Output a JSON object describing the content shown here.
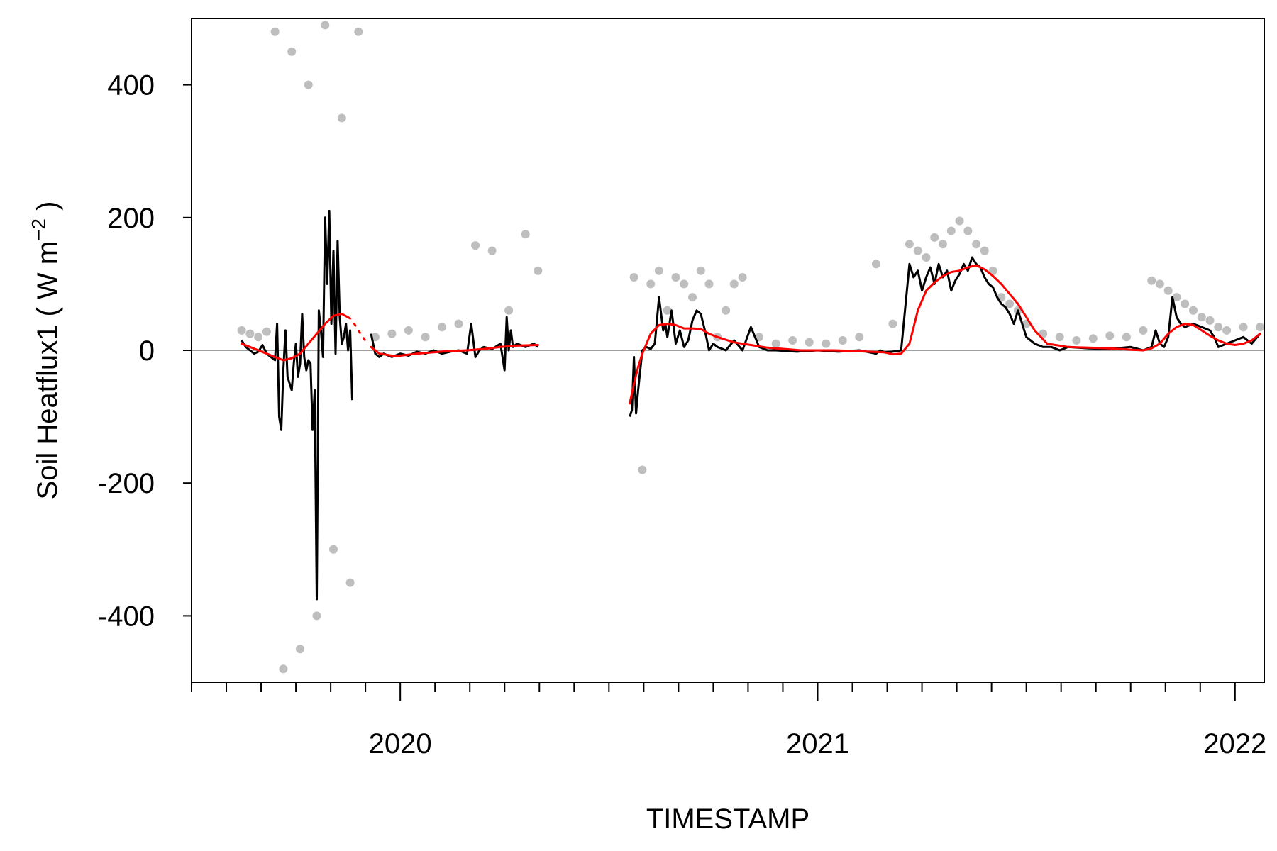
{
  "chart_data": {
    "type": "line",
    "title": "",
    "xlabel": "TIMESTAMP",
    "ylabel": {
      "main": "Soil Heatflux1 ( W m",
      "superscript": "−2",
      "close": " )"
    },
    "ylim": [
      -500,
      500
    ],
    "xlim": [
      2019.5,
      2022.07
    ],
    "y_ticks": [
      {
        "value": 400,
        "label": "400"
      },
      {
        "value": 200,
        "label": "200"
      },
      {
        "value": 0,
        "label": "0"
      },
      {
        "value": -200,
        "label": "-200"
      },
      {
        "value": -400,
        "label": "-400"
      }
    ],
    "x_ticks": [
      {
        "value": 2020,
        "label": "2020"
      },
      {
        "value": 2021,
        "label": "2021"
      },
      {
        "value": 2022,
        "label": "2022"
      }
    ],
    "x_minor_step_months": 1,
    "zero_line": true,
    "colors": {
      "raw": "#bebebe",
      "filtered": "#000000",
      "smoothed": "#ff0000",
      "zero_line": "#a0a0a0"
    },
    "series": [
      {
        "kind": "raw-points",
        "x": [
          2019.62,
          2019.64,
          2019.66,
          2019.68,
          2019.7,
          2019.72,
          2019.74,
          2019.76,
          2019.78,
          2019.8,
          2019.82,
          2019.84,
          2019.86,
          2019.88,
          2019.9,
          2019.94,
          2019.98,
          2020.02,
          2020.06,
          2020.1,
          2020.14,
          2020.18,
          2020.22,
          2020.26,
          2020.3,
          2020.33,
          2020.56,
          2020.58,
          2020.6,
          2020.62,
          2020.64,
          2020.66,
          2020.68,
          2020.7,
          2020.72,
          2020.74,
          2020.76,
          2020.78,
          2020.8,
          2020.82,
          2020.86,
          2020.9,
          2020.94,
          2020.98,
          2021.02,
          2021.06,
          2021.1,
          2021.14,
          2021.18,
          2021.22,
          2021.24,
          2021.26,
          2021.28,
          2021.3,
          2021.32,
          2021.34,
          2021.36,
          2021.38,
          2021.4,
          2021.42,
          2021.44,
          2021.46,
          2021.48,
          2021.5,
          2021.54,
          2021.58,
          2021.62,
          2021.66,
          2021.7,
          2021.74,
          2021.78,
          2021.8,
          2021.82,
          2021.84,
          2021.86,
          2021.88,
          2021.9,
          2021.92,
          2021.94,
          2021.96,
          2021.98,
          2022.02,
          2022.06
        ],
        "y": [
          30,
          25,
          20,
          28,
          480,
          -480,
          450,
          -450,
          400,
          -400,
          490,
          -300,
          350,
          -350,
          480,
          20,
          25,
          30,
          20,
          35,
          40,
          158,
          150,
          60,
          175,
          120,
          110,
          -180,
          100,
          120,
          60,
          110,
          100,
          80,
          120,
          100,
          20,
          60,
          100,
          110,
          20,
          10,
          15,
          12,
          10,
          15,
          20,
          130,
          40,
          160,
          150,
          140,
          170,
          160,
          180,
          195,
          180,
          160,
          150,
          120,
          80,
          70,
          60,
          40,
          25,
          20,
          15,
          18,
          22,
          20,
          30,
          105,
          100,
          90,
          80,
          70,
          60,
          50,
          45,
          35,
          30,
          35,
          35
        ]
      },
      {
        "kind": "filtered-line",
        "segments": [
          {
            "x": [
              2019.62,
              2019.63,
              2019.64,
              2019.65,
              2019.66,
              2019.67,
              2019.68,
              2019.69,
              2019.7,
              2019.705,
              2019.71,
              2019.715,
              2019.72,
              2019.725,
              2019.73,
              2019.74,
              2019.745,
              2019.75,
              2019.755,
              2019.76,
              2019.765,
              2019.77,
              2019.775,
              2019.78,
              2019.785,
              2019.79,
              2019.795,
              2019.8,
              2019.805,
              2019.81,
              2019.815,
              2019.82,
              2019.825,
              2019.83,
              2019.835,
              2019.84,
              2019.845,
              2019.85,
              2019.855,
              2019.86,
              2019.865,
              2019.87,
              2019.875,
              2019.88,
              2019.885
            ],
            "y": [
              15,
              5,
              0,
              -5,
              -2,
              8,
              -5,
              -10,
              -15,
              40,
              -100,
              -120,
              -30,
              30,
              -40,
              -60,
              -20,
              10,
              -40,
              -20,
              55,
              -10,
              -30,
              -15,
              -20,
              -120,
              -60,
              -375,
              60,
              30,
              -10,
              200,
              100,
              210,
              40,
              150,
              -5,
              165,
              50,
              10,
              20,
              40,
              0,
              30,
              -75
            ]
          },
          {
            "x": [
              2019.93,
              2019.94,
              2019.95,
              2019.96,
              2019.98,
              2020.0,
              2020.02,
              2020.04,
              2020.06,
              2020.08,
              2020.1,
              2020.12,
              2020.14,
              2020.16,
              2020.17,
              2020.18,
              2020.19,
              2020.2,
              2020.22,
              2020.24,
              2020.25,
              2020.255,
              2020.26,
              2020.265,
              2020.27,
              2020.28,
              2020.3,
              2020.32,
              2020.33
            ],
            "y": [
              25,
              -5,
              -10,
              -5,
              -10,
              -5,
              -8,
              -2,
              -5,
              0,
              -5,
              -2,
              0,
              -5,
              40,
              -10,
              0,
              5,
              2,
              10,
              -30,
              50,
              0,
              30,
              5,
              10,
              5,
              10,
              5
            ]
          },
          {
            "x": [
              2020.55,
              2020.555,
              2020.56,
              2020.565,
              2020.57,
              2020.58,
              2020.59,
              2020.6,
              2020.61,
              2020.62,
              2020.63,
              2020.635,
              2020.64,
              2020.65,
              2020.66,
              2020.67,
              2020.68,
              2020.69,
              2020.7,
              2020.71,
              2020.72,
              2020.73,
              2020.74,
              2020.75,
              2020.76,
              2020.78,
              2020.8,
              2020.82,
              2020.84,
              2020.86,
              2020.88,
              2020.9,
              2020.95,
              2021.0,
              2021.05,
              2021.1,
              2021.14,
              2021.15,
              2021.16,
              2021.18,
              2021.2,
              2021.22,
              2021.23,
              2021.24,
              2021.25,
              2021.26,
              2021.27,
              2021.28,
              2021.29,
              2021.3,
              2021.31,
              2021.32,
              2021.33,
              2021.34,
              2021.35,
              2021.36,
              2021.37,
              2021.38,
              2021.39,
              2021.4,
              2021.41,
              2021.42,
              2021.43,
              2021.44,
              2021.45,
              2021.46,
              2021.47,
              2021.48,
              2021.5,
              2021.52,
              2021.54,
              2021.56,
              2021.58,
              2021.6,
              2021.65,
              2021.7,
              2021.75,
              2021.78,
              2021.8,
              2021.81,
              2021.82,
              2021.83,
              2021.84,
              2021.85,
              2021.86,
              2021.87,
              2021.88,
              2021.9,
              2021.92,
              2021.94,
              2021.95,
              2021.96,
              2021.98,
              2022.0,
              2022.02,
              2022.04,
              2022.06
            ],
            "y": [
              -100,
              -90,
              -10,
              -95,
              -60,
              0,
              5,
              2,
              10,
              80,
              30,
              40,
              20,
              60,
              10,
              30,
              5,
              15,
              45,
              60,
              55,
              30,
              0,
              10,
              5,
              0,
              15,
              0,
              35,
              5,
              0,
              0,
              -2,
              0,
              -2,
              0,
              -5,
              0,
              -3,
              -2,
              0,
              130,
              110,
              120,
              90,
              110,
              125,
              100,
              130,
              110,
              120,
              90,
              105,
              115,
              130,
              120,
              140,
              130,
              125,
              110,
              100,
              95,
              80,
              70,
              65,
              55,
              40,
              60,
              20,
              10,
              5,
              5,
              0,
              5,
              3,
              2,
              5,
              0,
              5,
              30,
              10,
              5,
              20,
              80,
              50,
              40,
              35,
              40,
              35,
              30,
              20,
              5,
              10,
              15,
              20,
              10,
              25
            ]
          }
        ]
      },
      {
        "kind": "smoothed-line",
        "segments": [
          {
            "x": [
              2019.62,
              2019.64,
              2019.66,
              2019.68,
              2019.7,
              2019.72,
              2019.74,
              2019.76,
              2019.78,
              2019.8,
              2019.82,
              2019.84,
              2019.86,
              2019.88
            ],
            "y": [
              10,
              5,
              0,
              -5,
              -10,
              -15,
              -12,
              -5,
              10,
              25,
              40,
              52,
              55,
              48
            ]
          },
          {
            "x": [
              2019.89,
              2019.9,
              2019.91,
              2019.92
            ],
            "y": [
              40,
              30,
              20,
              12
            ],
            "dotted": true
          },
          {
            "x": [
              2019.93,
              2019.95,
              2019.98,
              2020.0,
              2020.04,
              2020.08,
              2020.12,
              2020.16,
              2020.2,
              2020.24,
              2020.28,
              2020.33
            ],
            "y": [
              5,
              -5,
              -8,
              -8,
              -5,
              -3,
              -1,
              0,
              2,
              5,
              7,
              8
            ]
          },
          {
            "x": [
              2020.55,
              2020.56,
              2020.57,
              2020.58,
              2020.59,
              2020.6,
              2020.62,
              2020.64,
              2020.66,
              2020.68,
              2020.7,
              2020.72,
              2020.74,
              2020.76,
              2020.8,
              2020.84,
              2020.88,
              2020.92,
              2020.96,
              2021.0,
              2021.04,
              2021.08,
              2021.12,
              2021.16,
              2021.18,
              2021.2,
              2021.22,
              2021.24,
              2021.26,
              2021.28,
              2021.3,
              2021.32,
              2021.34,
              2021.36,
              2021.38,
              2021.4,
              2021.42,
              2021.44,
              2021.46,
              2021.48,
              2021.5,
              2021.52,
              2021.55,
              2021.6,
              2021.65,
              2021.7,
              2021.75,
              2021.78,
              2021.8,
              2021.82,
              2021.84,
              2021.86,
              2021.88,
              2021.9,
              2021.92,
              2021.94,
              2021.96,
              2021.98,
              2022.0,
              2022.02,
              2022.04,
              2022.06
            ],
            "y": [
              -80,
              -50,
              -25,
              -5,
              10,
              25,
              38,
              40,
              38,
              33,
              33,
              32,
              25,
              20,
              12,
              8,
              4,
              2,
              0,
              0,
              0,
              -1,
              -2,
              -3,
              -6,
              -5,
              10,
              60,
              90,
              102,
              112,
              118,
              120,
              125,
              128,
              122,
              112,
              100,
              85,
              70,
              50,
              30,
              10,
              5,
              4,
              3,
              1,
              0,
              3,
              10,
              25,
              35,
              40,
              38,
              30,
              22,
              15,
              10,
              8,
              10,
              15,
              25
            ]
          }
        ]
      }
    ]
  }
}
